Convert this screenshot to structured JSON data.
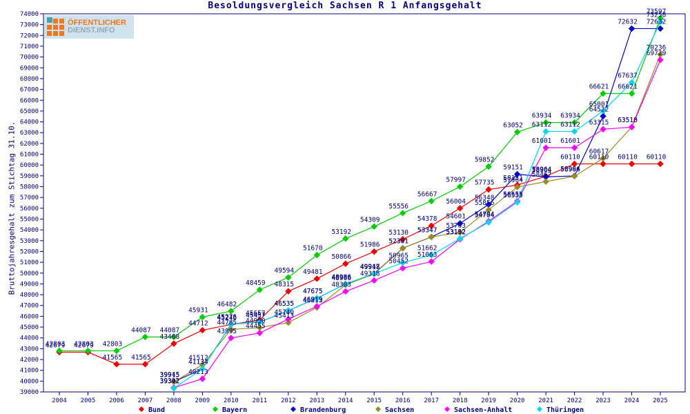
{
  "title": "Besoldungsvergleich Sachsen R 1 Anfangsgehalt",
  "y_axis_title": "Bruttojahresgehalt zum Stichtag 31.10.",
  "logo": {
    "line1": "ÖFFENTLICHER",
    "line2": "DIENST.INFO"
  },
  "chart_data": {
    "type": "line",
    "x": [
      2004,
      2005,
      2006,
      2007,
      2008,
      2009,
      2010,
      2011,
      2012,
      2013,
      2014,
      2015,
      2016,
      2017,
      2018,
      2019,
      2020,
      2021,
      2022,
      2023,
      2024,
      2025
    ],
    "xlabel": "",
    "ylabel": "Bruttojahresgehalt zum Stichtag 31.10.",
    "ylim": [
      39000,
      74000
    ],
    "ytick_step": 1000,
    "grid": false,
    "legend_position": "bottom",
    "text_color": "#000080",
    "frame_color": "#000080",
    "series": [
      {
        "name": "Bund",
        "color": "#ee0000",
        "values": [
          42679,
          42679,
          41565,
          41565,
          43468,
          44712,
          45240,
          45657,
          48315,
          49481,
          50866,
          51986,
          53130,
          54378,
          56004,
          57735,
          58151,
          58964,
          60110,
          60110,
          60110,
          60110
        ]
      },
      {
        "name": "Bayern",
        "color": "#00cc00",
        "values": [
          42803,
          42803,
          42803,
          44087,
          44087,
          45931,
          46482,
          48459,
          49594,
          51670,
          53192,
          54309,
          55556,
          56667,
          57997,
          59852,
          63052,
          63934,
          63934,
          66621,
          66621,
          73597
        ]
      },
      {
        "name": "Brandenburg",
        "color": "#0000cc",
        "values": [
          null,
          null,
          null,
          null,
          39945,
          41134,
          45276,
          45457,
          46535,
          47675,
          48986,
          49947,
          52301,
          53347,
          54601,
          56348,
          59151,
          58904,
          58994,
          64522,
          72632,
          72632
        ]
      },
      {
        "name": "Sachsen",
        "color": "#998a22",
        "values": [
          null,
          null,
          null,
          null,
          39915,
          41512,
          44785,
          44950,
          45413,
          46813,
          48906,
          49918,
          52301,
          53347,
          53763,
          55856,
          57964,
          58467,
          58966,
          60617,
          63518,
          70236
        ]
      },
      {
        "name": "Sachsen-Anhalt",
        "color": "#ff00ff",
        "values": [
          null,
          null,
          null,
          null,
          39392,
          40213,
          43995,
          44455,
          45740,
          46919,
          48303,
          49318,
          50452,
          51063,
          53132,
          54794,
          56655,
          61601,
          61601,
          63315,
          63510,
          69729
        ]
      },
      {
        "name": "Thüringen",
        "color": "#00d8ea",
        "values": [
          null,
          null,
          null,
          null,
          39342,
          41134,
          45276,
          45457,
          46535,
          47675,
          48986,
          49947,
          50965,
          51662,
          53192,
          54704,
          56555,
          63112,
          63112,
          65001,
          67637,
          73258
        ]
      }
    ]
  }
}
